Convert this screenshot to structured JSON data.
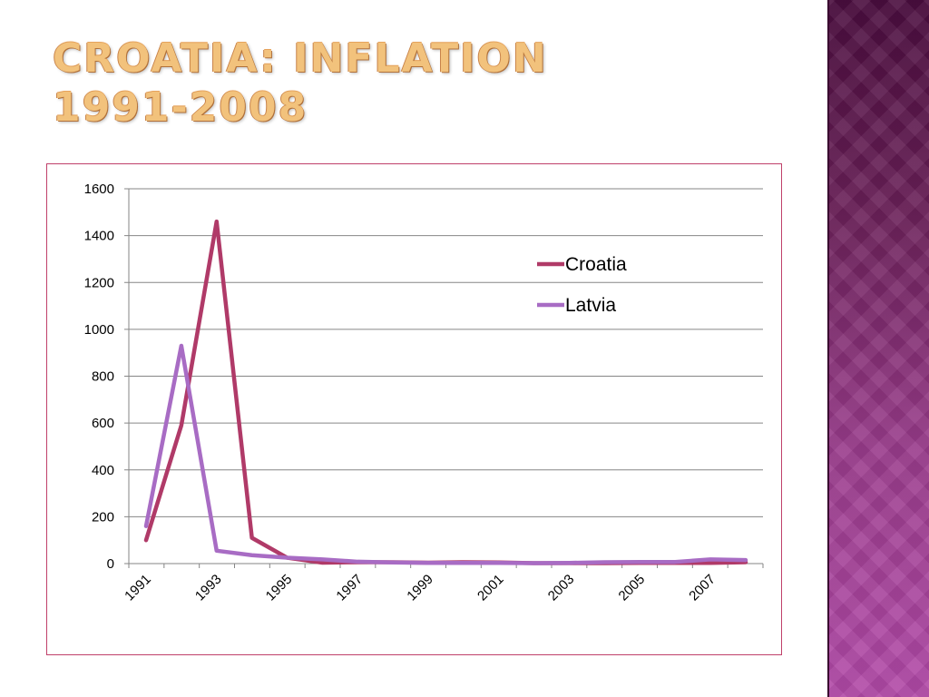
{
  "slide": {
    "title_line1": "CROATIA: INFLATION",
    "title_line2": "1991-2008"
  },
  "chart_data": {
    "type": "line",
    "x": [
      1991,
      1992,
      1993,
      1994,
      1995,
      1996,
      1997,
      1998,
      1999,
      2000,
      2001,
      2002,
      2003,
      2004,
      2005,
      2006,
      2007,
      2008
    ],
    "x_tick_labels": [
      "1991",
      "1993",
      "1995",
      "1997",
      "1999",
      "2001",
      "2003",
      "2005",
      "2007"
    ],
    "y_tick_labels": [
      "0",
      "200",
      "400",
      "600",
      "800",
      "1000",
      "1200",
      "1400",
      "1600"
    ],
    "ylim": [
      0,
      1600
    ],
    "grid": true,
    "legend_position": "top-right",
    "series": [
      {
        "name": "Croatia",
        "color": "#b03a68",
        "values": [
          100,
          590,
          1460,
          110,
          25,
          4,
          6,
          6,
          4,
          6,
          5,
          2,
          2,
          2,
          3,
          3,
          3,
          6
        ]
      },
      {
        "name": "Latvia",
        "color": "#a86cc4",
        "values": [
          160,
          930,
          55,
          36,
          25,
          18,
          8,
          5,
          3,
          3,
          3,
          2,
          3,
          6,
          7,
          7,
          18,
          15
        ]
      }
    ]
  }
}
